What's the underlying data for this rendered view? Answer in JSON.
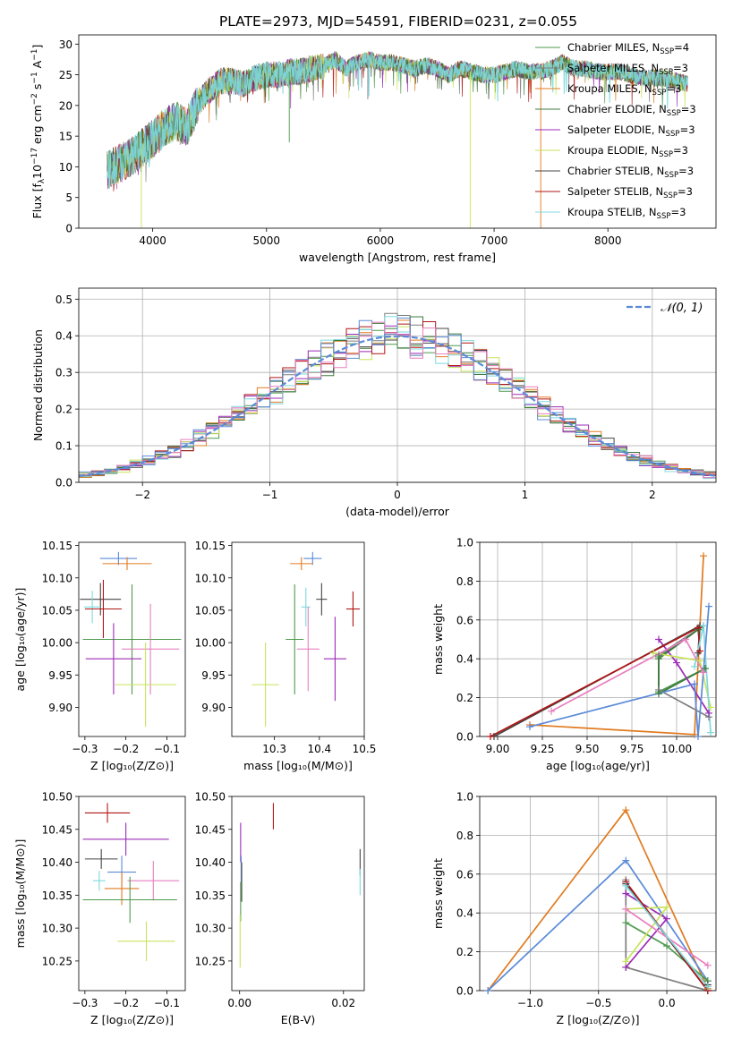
{
  "figure_title": "PLATE=2973, MJD=54591, FIBERID=0231, z=0.055",
  "colors": {
    "chabrier_miles": "#4e9a4e",
    "salpeter_miles": "#7f7f7f",
    "kroupa_miles": "#e07b20",
    "chabrier_elodie": "#3d7a3d",
    "salpeter_elodie": "#9b2bb8",
    "kroupa_elodie": "#c8e35a",
    "chabrier_stelib": "#444444",
    "salpeter_stelib": "#b01515",
    "kroupa_stelib": "#7fd8de",
    "blue": "#5b8bd8",
    "pink": "#e87fbf",
    "grid": "#b0b0b0"
  },
  "chart_data": [
    {
      "id": "spectrum",
      "type": "line",
      "xlabel": "wavelength [Angstrom, rest frame]",
      "ylabel_parts": [
        "Flux [f",
        "λ",
        "10",
        "−17",
        " erg cm",
        "−2",
        " s",
        "−1",
        " A",
        "−1",
        "]"
      ],
      "xlim": [
        3350,
        8950
      ],
      "ylim": [
        0,
        31.5
      ],
      "xticks": [
        4000,
        5000,
        6000,
        7000,
        8000
      ],
      "yticks": [
        0,
        5,
        10,
        15,
        20,
        25,
        30
      ],
      "grid": false,
      "legend_placement": "top-right",
      "legend": [
        {
          "name": "Chabrier MILES, N",
          "sub": "SSP",
          "suffix": "=4",
          "color_key": "chabrier_miles"
        },
        {
          "name": "Salpeter MILES, N",
          "sub": "SSP",
          "suffix": "=3",
          "color_key": "salpeter_miles"
        },
        {
          "name": "Kroupa MILES, N",
          "sub": "SSP",
          "suffix": "=3",
          "color_key": "kroupa_miles"
        },
        {
          "name": "Chabrier ELODIE, N",
          "sub": "SSP",
          "suffix": "=3",
          "color_key": "chabrier_elodie"
        },
        {
          "name": "Salpeter ELODIE, N",
          "sub": "SSP",
          "suffix": "=3",
          "color_key": "salpeter_elodie"
        },
        {
          "name": "Kroupa ELODIE, N",
          "sub": "SSP",
          "suffix": "=3",
          "color_key": "kroupa_elodie"
        },
        {
          "name": "Chabrier STELIB, N",
          "sub": "SSP",
          "suffix": "=3",
          "color_key": "chabrier_stelib"
        },
        {
          "name": "Salpeter STELIB, N",
          "sub": "SSP",
          "suffix": "=3",
          "color_key": "salpeter_stelib"
        },
        {
          "name": "Kroupa STELIB, N",
          "sub": "SSP",
          "suffix": "=3",
          "color_key": "kroupa_stelib"
        }
      ],
      "envelope": {
        "x": [
          3600,
          3700,
          3800,
          3900,
          4000,
          4100,
          4200,
          4300,
          4400,
          4500,
          4600,
          4700,
          4800,
          4900,
          5000,
          5100,
          5200,
          5300,
          5400,
          5500,
          5600,
          5700,
          5800,
          5900,
          6000,
          6100,
          6200,
          6300,
          6400,
          6500,
          6600,
          6700,
          6800,
          6900,
          7000,
          7100,
          7200,
          7300,
          7400,
          7500,
          7600,
          7700,
          7800,
          7900,
          8000,
          8100,
          8200,
          8300,
          8400,
          8500,
          8600,
          8700
        ],
        "y": [
          9.5,
          10.5,
          11.5,
          13,
          14.5,
          16.5,
          17.5,
          16.5,
          20.5,
          22.5,
          24,
          24,
          23.5,
          24.5,
          25,
          25,
          25.5,
          25.5,
          26,
          26.5,
          27.5,
          26,
          27,
          27.5,
          27,
          27,
          26.5,
          26,
          26.5,
          26,
          25,
          26,
          25.5,
          25,
          25,
          25.5,
          26,
          25.5,
          25.5,
          26,
          27,
          26,
          26,
          25.5,
          25.5,
          25.5,
          25,
          24.5,
          24.5,
          24.5,
          24,
          23.5
        ]
      },
      "spikes": [
        {
          "x": 3900,
          "y": 0
        },
        {
          "x": 5200,
          "y": 14
        },
        {
          "x": 5890,
          "y": 21
        },
        {
          "x": 6790,
          "y": 0
        },
        {
          "x": 7410,
          "y": 0
        }
      ]
    },
    {
      "id": "residuals",
      "type": "histogram",
      "xlabel": "(data-model)/error",
      "ylabel": "Normed distribution",
      "xlim": [
        -2.5,
        2.5
      ],
      "ylim": [
        0,
        0.53
      ],
      "xticks": [
        -2,
        -1,
        0,
        1,
        2
      ],
      "yticks": [
        0.0,
        0.1,
        0.2,
        0.3,
        0.4,
        0.5
      ],
      "grid": true,
      "legend_placement": "top-right",
      "legend_label": "𝒩(0, 1)",
      "bin_width": 0.1,
      "bin_start": -2.5
    },
    {
      "id": "age_vs_Z",
      "type": "scatter",
      "xlabel": "Z [log₁₀(Z/Z⊙)]",
      "ylabel": "age  [log₁₀(age/yr)]",
      "xlim": [
        -0.315,
        -0.055
      ],
      "ylim": [
        9.855,
        10.155
      ],
      "xticks": [
        -0.3,
        -0.2,
        -0.1
      ],
      "yticks": [
        9.9,
        9.95,
        10.0,
        10.05,
        10.1,
        10.15
      ],
      "grid": false,
      "points": [
        {
          "x": -0.218,
          "y": 10.13,
          "xerr": 0.045,
          "yerr": 0.01,
          "color_key": "blue"
        },
        {
          "x": -0.197,
          "y": 10.122,
          "xerr": 0.06,
          "yerr": 0.01,
          "color_key": "kroupa_miles"
        },
        {
          "x": -0.262,
          "y": 10.067,
          "xerr": 0.05,
          "yerr": 0.025,
          "color_key": "chabrier_stelib"
        },
        {
          "x": -0.282,
          "y": 10.055,
          "xerr": 0.02,
          "yerr": 0.025,
          "color_key": "kroupa_stelib"
        },
        {
          "x": -0.255,
          "y": 10.052,
          "xerr": 0.045,
          "yerr": 0.045,
          "color_key": "salpeter_stelib"
        },
        {
          "x": -0.185,
          "y": 10.005,
          "xerr": 0.12,
          "yerr": 0.085,
          "color_key": "chabrier_miles"
        },
        {
          "x": -0.14,
          "y": 9.99,
          "xerr": 0.07,
          "yerr": 0.07,
          "color_key": "pink"
        },
        {
          "x": -0.23,
          "y": 9.975,
          "xerr": 0.068,
          "yerr": 0.055,
          "color_key": "salpeter_elodie"
        },
        {
          "x": -0.152,
          "y": 9.935,
          "xerr": 0.075,
          "yerr": 0.065,
          "color_key": "kroupa_elodie"
        }
      ]
    },
    {
      "id": "age_vs_mass",
      "type": "scatter",
      "xlabel": "mass [log₁₀(M/M⊙)]",
      "ylabel": "",
      "xlim": [
        10.205,
        10.5
      ],
      "ylim": [
        9.855,
        10.155
      ],
      "xticks": [
        10.3,
        10.4,
        10.5
      ],
      "yticks": [
        9.9,
        9.95,
        10.0,
        10.05,
        10.1,
        10.15
      ],
      "grid": false,
      "points": [
        {
          "x": 10.385,
          "y": 10.13,
          "xerr": 0.02,
          "yerr": 0.01,
          "color_key": "blue"
        },
        {
          "x": 10.36,
          "y": 10.122,
          "xerr": 0.025,
          "yerr": 0.01,
          "color_key": "kroupa_miles"
        },
        {
          "x": 10.405,
          "y": 10.067,
          "xerr": 0.012,
          "yerr": 0.025,
          "color_key": "chabrier_stelib"
        },
        {
          "x": 10.37,
          "y": 10.055,
          "xerr": 0.01,
          "yerr": 0.03,
          "color_key": "kroupa_stelib"
        },
        {
          "x": 10.475,
          "y": 10.052,
          "xerr": 0.015,
          "yerr": 0.027,
          "color_key": "salpeter_stelib"
        },
        {
          "x": 10.345,
          "y": 10.005,
          "xerr": 0.02,
          "yerr": 0.085,
          "color_key": "chabrier_miles"
        },
        {
          "x": 10.375,
          "y": 9.99,
          "xerr": 0.025,
          "yerr": 0.065,
          "color_key": "pink"
        },
        {
          "x": 10.435,
          "y": 9.975,
          "xerr": 0.025,
          "yerr": 0.065,
          "color_key": "salpeter_elodie"
        },
        {
          "x": 10.28,
          "y": 9.935,
          "xerr": 0.03,
          "yerr": 0.065,
          "color_key": "kroupa_elodie"
        }
      ]
    },
    {
      "id": "mass_weight_vs_age",
      "type": "line",
      "xlabel": "age  [log₁₀(age/yr)]",
      "ylabel": "mass weight",
      "xlim": [
        8.9,
        10.22
      ],
      "ylim": [
        0,
        1.0
      ],
      "xticks": [
        9.0,
        9.25,
        9.5,
        9.75,
        10.0
      ],
      "xtick_labels": [
        "9.00",
        "9.25",
        "9.50",
        "9.75",
        "10.00"
      ],
      "yticks": [
        0.0,
        0.2,
        0.4,
        0.6,
        0.8,
        1.0
      ],
      "grid": true,
      "series": [
        {
          "color_key": "chabrier_miles",
          "x": [
            10.13,
            9.9,
            9.9,
            10.16
          ],
          "y": [
            0.56,
            0.41,
            0.23,
            0.35
          ]
        },
        {
          "color_key": "salpeter_miles",
          "x": [
            10.15,
            9.9,
            9.9,
            10.18
          ],
          "y": [
            0.57,
            0.42,
            0.24,
            0.1
          ]
        },
        {
          "color_key": "kroupa_miles",
          "x": [
            9.18,
            10.1,
            10.15
          ],
          "y": [
            0.06,
            0.01,
            0.93
          ]
        },
        {
          "color_key": "chabrier_elodie",
          "x": [
            10.12,
            9.9,
            9.9,
            10.16
          ],
          "y": [
            0.55,
            0.4,
            0.22,
            0.35
          ]
        },
        {
          "color_key": "salpeter_elodie",
          "x": [
            9.9,
            10.0,
            10.18
          ],
          "y": [
            0.5,
            0.38,
            0.12
          ]
        },
        {
          "color_key": "kroupa_elodie",
          "x": [
            9.87,
            10.13,
            10.19
          ],
          "y": [
            0.43,
            0.39,
            0.15
          ]
        },
        {
          "color_key": "chabrier_stelib",
          "x": [
            8.98,
            10.13,
            10.12
          ],
          "y": [
            0.0,
            0.57,
            0.43
          ]
        },
        {
          "color_key": "salpeter_stelib",
          "x": [
            8.96,
            10.12,
            10.13
          ],
          "y": [
            0.0,
            0.56,
            0.44
          ]
        },
        {
          "color_key": "kroupa_stelib",
          "x": [
            10.1,
            10.15,
            10.19
          ],
          "y": [
            0.36,
            0.57,
            0.02
          ]
        },
        {
          "color_key": "blue",
          "x": [
            9.18,
            10.1,
            10.12,
            10.18
          ],
          "y": [
            0.05,
            0.27,
            0.0,
            0.67
          ]
        },
        {
          "color_key": "pink",
          "x": [
            9.3,
            10.05,
            10.15
          ],
          "y": [
            0.13,
            0.5,
            0.33
          ]
        }
      ]
    },
    {
      "id": "mass_vs_Z",
      "type": "scatter",
      "xlabel": "Z [log₁₀(Z/Z⊙)]",
      "ylabel": "mass [log₁₀(M/M⊙)]",
      "xlim": [
        -0.315,
        -0.055
      ],
      "ylim": [
        10.205,
        10.5
      ],
      "xticks": [
        -0.3,
        -0.2,
        -0.1
      ],
      "yticks": [
        10.25,
        10.3,
        10.35,
        10.4,
        10.45,
        10.5
      ],
      "grid": false,
      "points": [
        {
          "x": -0.245,
          "y": 10.475,
          "xerr": 0.055,
          "yerr": 0.015,
          "color_key": "salpeter_stelib"
        },
        {
          "x": -0.2,
          "y": 10.435,
          "xerr": 0.105,
          "yerr": 0.025,
          "color_key": "salpeter_elodie"
        },
        {
          "x": -0.26,
          "y": 10.405,
          "xerr": 0.04,
          "yerr": 0.015,
          "color_key": "chabrier_stelib"
        },
        {
          "x": -0.21,
          "y": 10.385,
          "xerr": 0.035,
          "yerr": 0.025,
          "color_key": "blue"
        },
        {
          "x": -0.133,
          "y": 10.372,
          "xerr": 0.063,
          "yerr": 0.03,
          "color_key": "pink"
        },
        {
          "x": -0.265,
          "y": 10.372,
          "xerr": 0.015,
          "yerr": 0.015,
          "color_key": "kroupa_stelib"
        },
        {
          "x": -0.21,
          "y": 10.36,
          "xerr": 0.042,
          "yerr": 0.025,
          "color_key": "kroupa_miles"
        },
        {
          "x": -0.19,
          "y": 10.343,
          "xerr": 0.115,
          "yerr": 0.035,
          "color_key": "chabrier_miles"
        },
        {
          "x": -0.15,
          "y": 10.28,
          "xerr": 0.07,
          "yerr": 0.03,
          "color_key": "kroupa_elodie"
        }
      ]
    },
    {
      "id": "mass_vs_ebv",
      "type": "scatter",
      "xlabel": "E(B-V)",
      "ylabel": "",
      "xlim": [
        -0.0015,
        0.024
      ],
      "ylim": [
        10.205,
        10.5
      ],
      "xticks": [
        0.0,
        0.02
      ],
      "xtick_labels": [
        "0.00",
        "0.02"
      ],
      "yticks": [
        10.25,
        10.3,
        10.35,
        10.4,
        10.45,
        10.5
      ],
      "grid": false,
      "points": [
        {
          "x": 0.0065,
          "y": 10.47,
          "xerr": 0.0,
          "yerr": 0.02,
          "color_key": "salpeter_stelib"
        },
        {
          "x": 0.0002,
          "y": 10.43,
          "xerr": 0.0,
          "yerr": 0.03,
          "color_key": "salpeter_elodie"
        },
        {
          "x": 0.0003,
          "y": 10.39,
          "xerr": 0.0,
          "yerr": 0.02,
          "color_key": "blue"
        },
        {
          "x": 0.0004,
          "y": 10.37,
          "xerr": 0.0,
          "yerr": 0.03,
          "color_key": "chabrier_stelib"
        },
        {
          "x": 0.0002,
          "y": 10.34,
          "xerr": 0.0,
          "yerr": 0.03,
          "color_key": "chabrier_miles"
        },
        {
          "x": 0.0001,
          "y": 10.28,
          "xerr": 0.0,
          "yerr": 0.04,
          "color_key": "kroupa_elodie"
        },
        {
          "x": 0.0232,
          "y": 10.4,
          "xerr": 0.0,
          "yerr": 0.02,
          "color_key": "chabrier_stelib"
        },
        {
          "x": 0.0232,
          "y": 10.37,
          "xerr": 0.0,
          "yerr": 0.02,
          "color_key": "kroupa_stelib"
        }
      ]
    },
    {
      "id": "mass_weight_vs_Z",
      "type": "line",
      "xlabel": "Z [log₁₀(Z/Z⊙)]",
      "ylabel": "mass weight",
      "xlim": [
        -1.37,
        0.36
      ],
      "ylim": [
        0,
        1.0
      ],
      "xticks": [
        -1.0,
        -0.5,
        0.0
      ],
      "xtick_labels": [
        "−1.0",
        "−0.5",
        "0.0"
      ],
      "yticks": [
        0.0,
        0.2,
        0.4,
        0.6,
        0.8,
        1.0
      ],
      "grid": true,
      "series": [
        {
          "color_key": "kroupa_miles",
          "x": [
            -1.31,
            -0.3,
            0.3
          ],
          "y": [
            0.0,
            0.93,
            0.01
          ]
        },
        {
          "color_key": "blue",
          "x": [
            -1.31,
            -0.3,
            0.3
          ],
          "y": [
            0.0,
            0.67,
            0.05
          ]
        },
        {
          "color_key": "salpeter_miles",
          "x": [
            -0.3,
            -0.3,
            0.3
          ],
          "y": [
            0.57,
            0.12,
            0.0
          ]
        },
        {
          "color_key": "chabrier_miles",
          "x": [
            -0.3,
            0.0,
            0.3
          ],
          "y": [
            0.35,
            0.23,
            0.05
          ]
        },
        {
          "color_key": "salpeter_elodie",
          "x": [
            -0.3,
            0.0,
            -0.3
          ],
          "y": [
            0.12,
            0.37,
            0.5
          ]
        },
        {
          "color_key": "kroupa_elodie",
          "x": [
            -0.3,
            0.0,
            -0.3
          ],
          "y": [
            0.15,
            0.43,
            0.42
          ]
        },
        {
          "color_key": "chabrier_stelib",
          "x": [
            -0.3,
            0.3,
            0.3
          ],
          "y": [
            0.55,
            0.0,
            0.03
          ]
        },
        {
          "color_key": "salpeter_stelib",
          "x": [
            -0.3,
            0.3
          ],
          "y": [
            0.56,
            0.0
          ]
        },
        {
          "color_key": "pink",
          "x": [
            -0.3,
            0.3
          ],
          "y": [
            0.42,
            0.13
          ]
        },
        {
          "color_key": "kroupa_stelib",
          "x": [
            -0.3,
            0.3
          ],
          "y": [
            0.54,
            0.02
          ]
        }
      ]
    }
  ]
}
